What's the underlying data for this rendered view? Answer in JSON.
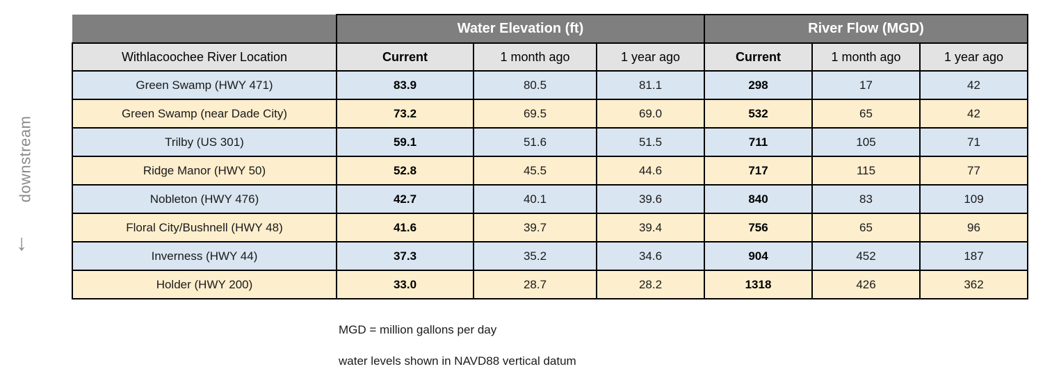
{
  "side": {
    "label": "downstream",
    "arrow": "↓"
  },
  "chart_data": {
    "type": "table",
    "location_header": "Withlacoochee River Location",
    "group_headers": [
      "Water Elevation (ft)",
      "River Flow (MGD)"
    ],
    "sub_headers": [
      "Current",
      "1 month ago",
      "1 year ago",
      "Current",
      "1 month ago",
      "1 year ago"
    ],
    "rows": [
      {
        "location": "Green Swamp (HWY 471)",
        "values": [
          "83.9",
          "80.5",
          "81.1",
          "298",
          "17",
          "42"
        ]
      },
      {
        "location": "Green Swamp (near Dade City)",
        "values": [
          "73.2",
          "69.5",
          "69.0",
          "532",
          "65",
          "42"
        ]
      },
      {
        "location": "Trilby (US 301)",
        "values": [
          "59.1",
          "51.6",
          "51.5",
          "711",
          "105",
          "71"
        ]
      },
      {
        "location": "Ridge Manor (HWY 50)",
        "values": [
          "52.8",
          "45.5",
          "44.6",
          "717",
          "115",
          "77"
        ]
      },
      {
        "location": "Nobleton (HWY 476)",
        "values": [
          "42.7",
          "40.1",
          "39.6",
          "840",
          "83",
          "109"
        ]
      },
      {
        "location": "Floral City/Bushnell (HWY 48)",
        "values": [
          "41.6",
          "39.7",
          "39.4",
          "756",
          "65",
          "96"
        ]
      },
      {
        "location": "Inverness (HWY 44)",
        "values": [
          "37.3",
          "35.2",
          "34.6",
          "904",
          "452",
          "187"
        ]
      },
      {
        "location": "Holder (HWY 200)",
        "values": [
          "33.0",
          "28.7",
          "28.2",
          "1318",
          "426",
          "362"
        ]
      }
    ]
  },
  "notes": [
    "MGD = million gallons per day",
    "water levels shown in NAVD88 vertical datum"
  ],
  "colors": {
    "group_header_bg": "#7f7f7f",
    "group_header_text": "#ffffff",
    "subheader_bg": "#e3e3e3",
    "row_blue": "#d9e5f1",
    "row_cream": "#fdeecd",
    "border": "#000000",
    "side_text": "#8a8a8a"
  }
}
